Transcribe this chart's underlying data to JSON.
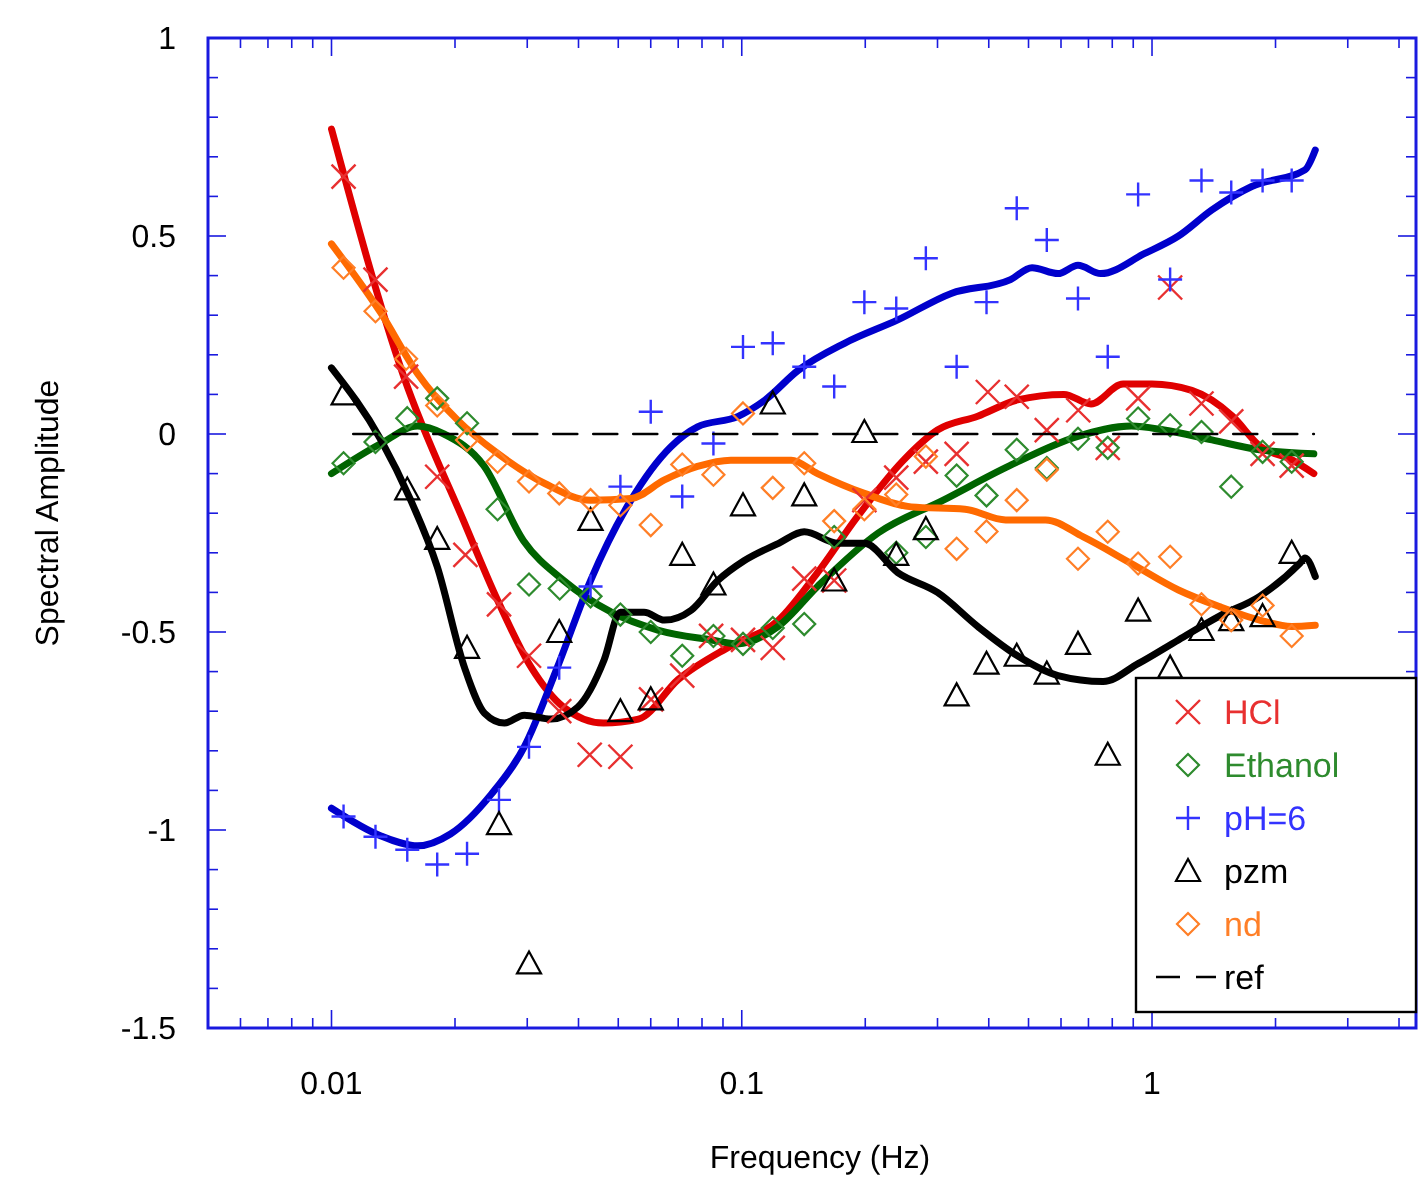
{
  "chart_data": {
    "type": "scatter",
    "xlabel": "Frequency (Hz)",
    "ylabel": "Spectral Amplitude",
    "log": "x",
    "legend": "bottom right",
    "xlim": [
      0.005,
      4.4
    ],
    "ylim": [
      -1.5,
      1
    ],
    "xticks": [
      {
        "value": 0.005,
        "label": null
      },
      {
        "value": 0.006,
        "label": null
      },
      {
        "value": 0.007,
        "label": null
      },
      {
        "value": 0.008,
        "label": null
      },
      {
        "value": 0.009,
        "label": null
      },
      0.01,
      {
        "value": 0.02,
        "label": null
      },
      {
        "value": 0.03,
        "label": null
      },
      {
        "value": 0.04,
        "label": null
      },
      {
        "value": 0.05,
        "label": null
      },
      {
        "value": 0.06,
        "label": null
      },
      {
        "value": 0.07,
        "label": null
      },
      {
        "value": 0.08,
        "label": null
      },
      {
        "value": 0.09,
        "label": null
      },
      0.1,
      {
        "value": 0.2,
        "label": null
      },
      {
        "value": 0.3,
        "label": null
      },
      {
        "value": 0.4,
        "label": null
      },
      {
        "value": 0.5,
        "label": null
      },
      {
        "value": 0.6,
        "label": null
      },
      {
        "value": 0.7,
        "label": null
      },
      {
        "value": 0.8,
        "label": null
      },
      {
        "value": 0.9,
        "label": null
      },
      1,
      {
        "value": 2,
        "label": null
      },
      {
        "value": 3,
        "label": null
      },
      {
        "value": 4,
        "label": null
      }
    ],
    "yticks": [
      -1.5,
      {
        "value": -1.4,
        "label": null
      },
      {
        "value": -1.3,
        "label": null
      },
      {
        "value": -1.2,
        "label": null
      },
      {
        "value": -1.1,
        "label": null
      },
      -1,
      {
        "value": -0.9,
        "label": null
      },
      {
        "value": -0.8,
        "label": null
      },
      {
        "value": -0.7,
        "label": null
      },
      {
        "value": -0.6,
        "label": null
      },
      -0.5,
      {
        "value": -0.4,
        "label": null
      },
      {
        "value": -0.3,
        "label": null
      },
      {
        "value": -0.2,
        "label": null
      },
      {
        "value": -0.1,
        "label": null
      },
      0,
      {
        "value": 0.1,
        "label": null
      },
      {
        "value": 0.2,
        "label": null
      },
      {
        "value": 0.3,
        "label": null
      },
      {
        "value": 0.4,
        "label": null
      },
      0.5,
      {
        "value": 0.6,
        "label": null
      },
      {
        "value": 0.7,
        "label": null
      },
      {
        "value": 0.8,
        "label": null
      },
      {
        "value": 0.9,
        "label": null
      },
      1
    ],
    "series": [
      {
        "type": "line",
        "color": "#e00000",
        "x": [
          0.01,
          0.015,
          0.021,
          0.0254,
          0.0307,
          0.0368,
          0.046,
          0.056,
          0.07,
          0.094,
          0.123,
          0.153,
          0.191,
          0.248,
          0.3,
          0.376,
          0.47,
          0.61,
          0.71,
          0.85,
          1.0,
          1.25,
          1.57,
          1.83,
          2.2,
          2.48
        ],
        "values": [
          0.77,
          0.145,
          -0.22,
          -0.42,
          -0.59,
          -0.69,
          -0.73,
          -0.72,
          -0.62,
          -0.535,
          -0.47,
          -0.35,
          -0.21,
          -0.066,
          0.01,
          0.045,
          0.086,
          0.1,
          0.076,
          0.126,
          0.126,
          0.11,
          0.045,
          -0.03,
          -0.066,
          -0.1
        ]
      },
      {
        "type": "line",
        "color": "#006400",
        "x": [
          0.01,
          0.0132,
          0.0162,
          0.0188,
          0.0235,
          0.0294,
          0.0368,
          0.0481,
          0.0624,
          0.0842,
          0.0977,
          0.123,
          0.153,
          0.215,
          0.31,
          0.45,
          0.66,
          0.89,
          1.07,
          1.4,
          1.83,
          2.48
        ],
        "values": [
          -0.1,
          -0.024,
          0.02,
          0.0,
          -0.08,
          -0.27,
          -0.37,
          -0.45,
          -0.495,
          -0.52,
          -0.53,
          -0.485,
          -0.385,
          -0.25,
          -0.167,
          -0.08,
          -0.006,
          0.02,
          0.01,
          -0.015,
          -0.04,
          -0.05
        ]
      },
      {
        "type": "line",
        "color": "#0000cc",
        "x": [
          0.01,
          0.0132,
          0.0162,
          0.0195,
          0.0245,
          0.0295,
          0.0355,
          0.0428,
          0.0537,
          0.0672,
          0.078,
          0.0977,
          0.114,
          0.137,
          0.178,
          0.24,
          0.324,
          0.452,
          0.51,
          0.59,
          0.66,
          0.75,
          0.96,
          1.16,
          1.4,
          1.75,
          2.36,
          2.5
        ],
        "values": [
          -0.945,
          -1.015,
          -1.04,
          -1.01,
          -0.91,
          -0.79,
          -0.59,
          -0.37,
          -0.167,
          -0.032,
          0.018,
          0.044,
          0.086,
          0.16,
          0.229,
          0.288,
          0.355,
          0.39,
          0.42,
          0.405,
          0.426,
          0.405,
          0.456,
          0.5,
          0.566,
          0.625,
          0.667,
          0.717
        ]
      },
      {
        "type": "line",
        "color": "#000000",
        "x": [
          0.01,
          0.0132,
          0.0156,
          0.0181,
          0.0211,
          0.0236,
          0.0264,
          0.0295,
          0.0343,
          0.0398,
          0.0462,
          0.0506,
          0.0578,
          0.0648,
          0.0753,
          0.0874,
          0.1013,
          0.123,
          0.142,
          0.172,
          0.199,
          0.24,
          0.3,
          0.376,
          0.47,
          0.59,
          0.76,
          0.925,
          1.16,
          1.46,
          1.83,
          2.29,
          2.36,
          2.5
        ],
        "values": [
          0.167,
          -0.015,
          -0.167,
          -0.335,
          -0.59,
          -0.705,
          -0.73,
          -0.71,
          -0.72,
          -0.69,
          -0.57,
          -0.45,
          -0.45,
          -0.47,
          -0.445,
          -0.37,
          -0.32,
          -0.276,
          -0.247,
          -0.276,
          -0.276,
          -0.35,
          -0.4,
          -0.486,
          -0.56,
          -0.61,
          -0.625,
          -0.58,
          -0.52,
          -0.46,
          -0.41,
          -0.327,
          -0.313,
          -0.36
        ]
      },
      {
        "type": "line",
        "color": "#ff6a00",
        "x": [
          0.01,
          0.0132,
          0.0162,
          0.0203,
          0.0254,
          0.0331,
          0.0428,
          0.0537,
          0.0648,
          0.078,
          0.094,
          0.132,
          0.153,
          0.199,
          0.259,
          0.35,
          0.44,
          0.55,
          0.68,
          0.89,
          1.16,
          1.46,
          1.83,
          2.19,
          2.5
        ],
        "values": [
          0.48,
          0.305,
          0.153,
          0.035,
          -0.049,
          -0.125,
          -0.167,
          -0.163,
          -0.116,
          -0.082,
          -0.066,
          -0.066,
          -0.1,
          -0.15,
          -0.184,
          -0.19,
          -0.217,
          -0.217,
          -0.26,
          -0.327,
          -0.394,
          -0.436,
          -0.47,
          -0.486,
          -0.483
        ]
      },
      {
        "name": "HCl",
        "color": "#e83030",
        "marker": "x",
        "x": [
          0.0107,
          0.0128,
          0.0152,
          0.0181,
          0.0212,
          0.0256,
          0.0303,
          0.0359,
          0.0426,
          0.0506,
          0.0601,
          0.0716,
          0.0842,
          0.1007,
          0.119,
          0.142,
          0.168,
          0.199,
          0.238,
          0.281,
          0.334,
          0.398,
          0.468,
          0.554,
          0.661,
          0.78,
          0.925,
          1.107,
          1.32,
          1.56,
          1.86,
          2.19
        ],
        "values": [
          0.65,
          0.39,
          0.145,
          -0.108,
          -0.305,
          -0.43,
          -0.56,
          -0.7,
          -0.81,
          -0.815,
          -0.67,
          -0.61,
          -0.51,
          -0.52,
          -0.54,
          -0.365,
          -0.37,
          -0.167,
          -0.11,
          -0.07,
          -0.05,
          0.106,
          0.094,
          0.01,
          0.06,
          -0.035,
          0.09,
          0.37,
          0.077,
          0.032,
          -0.05,
          -0.08
        ]
      },
      {
        "name": "Ethanol",
        "color": "#2e8b2e",
        "marker": "diamond",
        "x": [
          0.0107,
          0.0128,
          0.0153,
          0.0181,
          0.0214,
          0.0254,
          0.0303,
          0.036,
          0.0428,
          0.0506,
          0.06,
          0.0716,
          0.0853,
          0.1007,
          0.119,
          0.142,
          0.168,
          0.238,
          0.281,
          0.334,
          0.395,
          0.468,
          0.554,
          0.66,
          0.78,
          0.925,
          1.107,
          1.32,
          1.56,
          1.86,
          2.19
        ],
        "values": [
          -0.074,
          -0.02,
          0.04,
          0.09,
          0.027,
          -0.19,
          -0.38,
          -0.39,
          -0.41,
          -0.456,
          -0.5,
          -0.56,
          -0.51,
          -0.53,
          -0.49,
          -0.48,
          -0.26,
          -0.3,
          -0.26,
          -0.105,
          -0.155,
          -0.04,
          -0.086,
          -0.012,
          -0.035,
          0.039,
          0.022,
          0.005,
          -0.133,
          -0.045,
          -0.07
        ]
      },
      {
        "name": "pH=6",
        "color": "#3333ff",
        "marker": "cross",
        "x": [
          0.0107,
          0.0128,
          0.0153,
          0.0181,
          0.0214,
          0.0256,
          0.0303,
          0.0359,
          0.0428,
          0.0506,
          0.06,
          0.0716,
          0.0853,
          0.1007,
          0.119,
          0.142,
          0.168,
          0.199,
          0.238,
          0.281,
          0.334,
          0.395,
          0.468,
          0.554,
          0.66,
          0.78,
          0.925,
          1.107,
          1.32,
          1.56,
          1.86,
          2.19
        ],
        "values": [
          -0.966,
          -1.017,
          -1.05,
          -1.087,
          -1.06,
          -0.924,
          -0.79,
          -0.59,
          -0.385,
          -0.133,
          0.056,
          -0.158,
          -0.024,
          0.22,
          0.229,
          0.17,
          0.12,
          0.333,
          0.317,
          0.444,
          0.17,
          0.333,
          0.57,
          0.49,
          0.342,
          0.195,
          0.605,
          0.39,
          0.64,
          0.61,
          0.64,
          0.64
        ]
      },
      {
        "name": "pzm",
        "color": "#000000",
        "marker": "triangle",
        "x": [
          0.0107,
          0.0153,
          0.0181,
          0.0214,
          0.0256,
          0.0303,
          0.0359,
          0.0428,
          0.0506,
          0.06,
          0.0716,
          0.0853,
          0.1007,
          0.119,
          0.142,
          0.168,
          0.199,
          0.238,
          0.281,
          0.334,
          0.395,
          0.468,
          0.554,
          0.66,
          0.78,
          0.925,
          1.107,
          1.32,
          1.56,
          1.86,
          2.19
        ],
        "values": [
          0.1,
          -0.14,
          -0.265,
          -0.54,
          -0.985,
          -1.337,
          -0.5,
          -0.217,
          -0.7,
          -0.67,
          -0.305,
          -0.38,
          -0.18,
          0.077,
          -0.155,
          -0.37,
          0.005,
          -0.305,
          -0.24,
          -0.66,
          -0.58,
          -0.56,
          -0.605,
          -0.53,
          -0.81,
          -0.446,
          -0.59,
          -0.495,
          -0.47,
          -0.46,
          -0.3
        ]
      },
      {
        "name": "nd",
        "color": "#ff7f27",
        "marker": "diamond",
        "x": [
          0.0107,
          0.0128,
          0.0152,
          0.0181,
          0.0214,
          0.0254,
          0.0303,
          0.0359,
          0.0428,
          0.0506,
          0.06,
          0.0716,
          0.0853,
          0.1007,
          0.119,
          0.142,
          0.168,
          0.199,
          0.238,
          0.281,
          0.334,
          0.395,
          0.468,
          0.554,
          0.66,
          0.78,
          0.925,
          1.107,
          1.32,
          1.56,
          1.86,
          2.19
        ],
        "values": [
          0.42,
          0.31,
          0.19,
          0.072,
          -0.015,
          -0.07,
          -0.12,
          -0.15,
          -0.167,
          -0.18,
          -0.23,
          -0.077,
          -0.103,
          0.052,
          -0.136,
          -0.074,
          -0.22,
          -0.19,
          -0.153,
          -0.057,
          -0.29,
          -0.246,
          -0.167,
          -0.09,
          -0.315,
          -0.247,
          -0.327,
          -0.31,
          -0.43,
          -0.47,
          -0.433,
          -0.51
        ]
      },
      {
        "type": "line",
        "name": "ref",
        "color": "#000000",
        "line_style": "dashed",
        "x": [
          0.0113,
          2.48
        ],
        "values": [
          0,
          0
        ]
      }
    ]
  }
}
